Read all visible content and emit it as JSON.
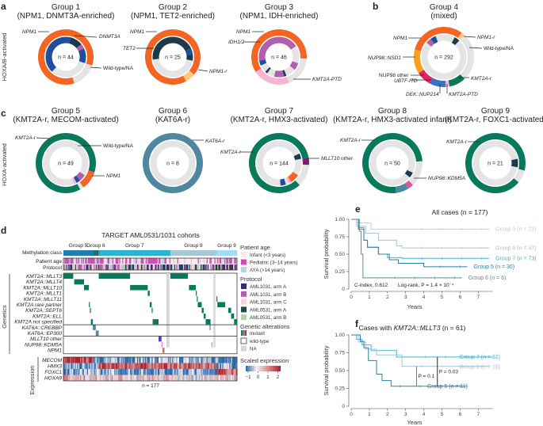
{
  "panel_labels": {
    "a": "a",
    "b": "b",
    "c": "c",
    "d": "d",
    "e": "e",
    "f": "f"
  },
  "side_labels": {
    "hoxab": "HOXA/B-activated",
    "hoxa": "HOXA-activated"
  },
  "colors": {
    "NPM1": "#f26522",
    "NPM1-r": "#fbc97a",
    "DNMT3A": "#1f4e9c",
    "TET2": "#1b3a4b",
    "IDH1/2": "#b05fac",
    "KMT2A-PTD": "#f4b6d2",
    "Wild-type/NA": "#e4e4e4",
    "KMT2A-r": "#08795a",
    "KAT6A-r": "#4f86a0",
    "NUP98::NSD1": "#f6a21c",
    "NUP98 other": "#e0245e",
    "UBTF-ITD": "#e0245e",
    "DEK::NUP214": "#3b73c4",
    "MLLT10 other": "#7a1f7a",
    "NUP98::KDM5A": "#e8509a"
  },
  "donuts": [
    {
      "id": "g1",
      "title": "Group 1",
      "subtitle": "(NPM1, DNMT3A-enriched)",
      "n": "n = 44",
      "outer": [
        [
          "NPM1",
          0.3
        ],
        [
          "Wild-type/NA",
          0.15
        ],
        [
          "NPM1",
          0.55
        ]
      ],
      "inner": [
        [
          "DNMT3A",
          0.04
        ],
        [
          "TET2",
          0.1
        ],
        [
          "IDH1/2",
          0.04
        ],
        [
          "DNMT3A",
          0.12
        ],
        [
          "Wild-type/NA",
          0.32
        ],
        [
          "DNMT3A",
          0.38
        ]
      ],
      "labels": [
        "NPM1",
        "DNMT3A",
        "Wild-type/NA"
      ]
    },
    {
      "id": "g2",
      "title": "Group 2",
      "subtitle": "(NPM1, TET2-enriched)",
      "n": "n = 25",
      "outer": [
        [
          "NPM1",
          0.36
        ],
        [
          "NPM1-r",
          0.06
        ],
        [
          "NPM1",
          0.58
        ]
      ],
      "inner": [
        [
          "TET2",
          0.18
        ],
        [
          "DNMT3A",
          0.05
        ],
        [
          "TET2",
          0.05
        ],
        [
          "Wild-type/NA",
          0.45
        ],
        [
          "TET2",
          0.27
        ]
      ],
      "labels": [
        "NPM1",
        "TET2",
        "NPM1-r"
      ]
    },
    {
      "id": "g3",
      "title": "Group 3",
      "subtitle": "(NPM1, IDH-enriched)",
      "n": "n = 46",
      "outer": [
        [
          "NPM1",
          0.26
        ],
        [
          "Wild-type/NA",
          0.18
        ],
        [
          "KMT2A-PTD",
          0.22
        ],
        [
          "NPM1",
          0.34
        ]
      ],
      "inner": [
        [
          "IDH1/2",
          0.16
        ],
        [
          "Wild-type/NA",
          0.14
        ],
        [
          "IDH1/2",
          0.06
        ],
        [
          "Wild-type/NA",
          0.08
        ],
        [
          "TET2",
          0.02
        ],
        [
          "IDH1/2",
          0.08
        ],
        [
          "Wild-type/NA",
          0.06
        ],
        [
          "TET2",
          0.02
        ],
        [
          "Wild-type/NA",
          0.06
        ],
        [
          "DNMT3A",
          0.04
        ],
        [
          "IDH1/2",
          0.28
        ]
      ],
      "labels": [
        "NPM1",
        "IDH1/2",
        "KMT2A-PTD"
      ]
    },
    {
      "id": "g4",
      "title": "Group 4",
      "subtitle": "(mixed)",
      "n": "n = 292",
      "outer": [
        [
          "NPM1",
          0.1
        ],
        [
          "NPM1-r",
          0.02
        ],
        [
          "Wild-type/NA",
          0.26
        ],
        [
          "KMT2A-r",
          0.09
        ],
        [
          "KMT2A-PTD",
          0.02
        ],
        [
          "DEK::NUP214",
          0.09
        ],
        [
          "UBTF-ITD",
          0.08
        ],
        [
          "NUP98::NSD1",
          0.13
        ],
        [
          "NPM1",
          0.21
        ]
      ],
      "inner": [
        [
          "Wild-type/NA",
          0.08
        ],
        [
          "TET2",
          0.04
        ],
        [
          "Wild-type/NA",
          0.74
        ],
        [
          "IDH1/2",
          0.04
        ],
        [
          "DNMT3A",
          0.04
        ],
        [
          "Wild-type/NA",
          0.06
        ]
      ],
      "labels": [
        "NPM1",
        "NPM1-r",
        "Wild-type/NA",
        "NUP98::NSD1",
        "NUP98 other",
        "UBTF-ITD",
        "KMT2A-r",
        "DEK::NUP214",
        "KMT2A-PTD"
      ]
    },
    {
      "id": "g5",
      "title": "Group 5",
      "subtitle": "(KMT2A-r, MECOM-activated)",
      "n": "n = 49",
      "outer": [
        [
          "KMT2A-r",
          0.3
        ],
        [
          "NPM1",
          0.1
        ],
        [
          "Wild-type/NA",
          0.02
        ],
        [
          "KMT2A-r",
          0.58
        ]
      ],
      "inner": [
        [
          "Wild-type/NA",
          0.34
        ],
        [
          "IDH1/2",
          0.05
        ],
        [
          "DNMT3A",
          0.03
        ],
        [
          "KMT2A-PTD",
          0.02
        ],
        [
          "Wild-type/NA",
          0.56
        ]
      ],
      "labels": [
        "KMT2A-r",
        "Wild-type/NA",
        "NPM1"
      ]
    },
    {
      "id": "g6",
      "title": "Group 6",
      "subtitle": "(KAT6A-r)",
      "n": "n = 8",
      "outer": [
        [
          "KAT6A-r",
          1.0
        ]
      ],
      "inner": [
        [
          "Wild-type/NA",
          1.0
        ]
      ],
      "labels": [
        "KAT6A-r"
      ]
    },
    {
      "id": "g7",
      "title": "Group 7",
      "subtitle": "(KMT2A-r, HMX3-activated)",
      "n": "n = 144",
      "outer": [
        [
          "KMT2A-r",
          0.22
        ],
        [
          "MLLT10 other",
          0.04
        ],
        [
          "Wild-type/NA",
          0.12
        ],
        [
          "KMT2A-r",
          0.62
        ]
      ],
      "inner": [
        [
          "Wild-type/NA",
          0.18
        ],
        [
          "TET2",
          0.04
        ],
        [
          "Wild-type/NA",
          0.12
        ],
        [
          "NPM1",
          0.07
        ],
        [
          "KMT2A-PTD",
          0.02
        ],
        [
          "Wild-type/NA",
          0.02
        ],
        [
          "DNMT3A",
          0.04
        ],
        [
          "Wild-type/NA",
          0.51
        ]
      ],
      "labels": [
        "KMT2A-r",
        "MLLT10 other"
      ]
    },
    {
      "id": "g8",
      "title": "Group 8",
      "subtitle": "(KMT2A-r, HMX3-activated infant)",
      "n": "n = 50",
      "outer": [
        [
          "KMT2A-r",
          0.24
        ],
        [
          "Wild-type/NA",
          0.14
        ],
        [
          "NUP98::KDM5A",
          0.03
        ],
        [
          "KAT6A-r",
          0.07
        ],
        [
          "KMT2A-r",
          0.52
        ]
      ],
      "inner": [
        [
          "Wild-type/NA",
          0.32
        ],
        [
          "TET2",
          0.04
        ],
        [
          "Wild-type/NA",
          0.64
        ]
      ],
      "labels": [
        "KMT2A-r",
        "NUP98::KDM5A"
      ]
    },
    {
      "id": "g9",
      "title": "Group 9",
      "subtitle": "(KMT2A-r, FOXC1-activated)",
      "n": "n = 21",
      "outer": [
        [
          "KMT2A-r",
          0.29
        ],
        [
          "Wild-type/NA",
          0.07
        ],
        [
          "KMT2A-r",
          0.64
        ]
      ],
      "inner": [
        [
          "Wild-type/NA",
          0.22
        ],
        [
          "TET2",
          0.06
        ],
        [
          "Wild-type/NA",
          0.72
        ]
      ],
      "labels": [
        "KMT2A-r"
      ]
    }
  ],
  "heatmap": {
    "title": "TARGET AML0531/1031 cohorts",
    "groups": [
      {
        "name": "Group 5",
        "count": 30,
        "color": "#1e7fae"
      },
      {
        "name": "Group 6",
        "count": 6,
        "color": "#2c6b6e"
      },
      {
        "name": "Group 7",
        "count": 73,
        "color": "#2eb3cf"
      },
      {
        "name": "Group 8",
        "count": 47,
        "color": "#a8c6d6"
      },
      {
        "name": "Group 9",
        "count": 21,
        "color": "#a3dcf6"
      }
    ],
    "methylation_label": "Methylation class",
    "annotation_rows": [
      "Patient age",
      "Protocol"
    ],
    "genetics_label": "Genetics",
    "genetics_rows": [
      {
        "name": "KMT2A::MLLT3",
        "color": "#08795a",
        "cols": [
          [
            0,
            10
          ],
          [
            36,
            68
          ],
          [
            109,
            127
          ]
        ]
      },
      {
        "name": "KMT2A::MLLT4",
        "color": "#08795a",
        "cols": [
          [
            11,
            21
          ]
        ]
      },
      {
        "name": "KMT2A::MLLT10",
        "color": "#08795a",
        "cols": [
          [
            21,
            26
          ],
          [
            68,
            86
          ],
          [
            128,
            135
          ]
        ]
      },
      {
        "name": "KMT2A::MLLT1",
        "color": "#08795a",
        "cols": [
          [
            86,
            88
          ],
          [
            135,
            136
          ]
        ]
      },
      {
        "name": "KMT2A::MLLT11",
        "color": "#08795a",
        "cols": [
          [
            136,
            137
          ],
          [
            156,
            157
          ]
        ]
      },
      {
        "name": "KMT2A rare partner",
        "color": "#08795a",
        "cols": [
          [
            26,
            27
          ],
          [
            88,
            90
          ],
          [
            137,
            141
          ],
          [
            157,
            165
          ]
        ]
      },
      {
        "name": "KMT2A::SEPT6",
        "color": "#08795a",
        "cols": [
          [
            27,
            28
          ],
          [
            90,
            91
          ],
          [
            141,
            143
          ],
          [
            168,
            171
          ]
        ]
      },
      {
        "name": "KMT2A::ELL",
        "color": "#08795a",
        "cols": [
          [
            143,
            145
          ],
          [
            171,
            174
          ]
        ]
      },
      {
        "name": "KMT2A not specified",
        "color": "#08795a",
        "cols": [
          [
            28,
            30
          ],
          [
            91,
            97
          ],
          [
            145,
            150
          ],
          [
            174,
            177
          ]
        ]
      },
      {
        "name": "KAT6A::CREBBP",
        "color": "#4f86a0",
        "cols": [
          [
            30,
            33
          ],
          [
            149,
            150
          ]
        ]
      },
      {
        "name": "KAT6A::EP300",
        "color": "#4f86a0",
        "cols": [
          [
            33,
            36
          ]
        ]
      },
      {
        "name": "MLLT10 other",
        "color": "#4a3fd6",
        "cols": [
          [
            97,
            100
          ]
        ]
      },
      {
        "name": "NUP98::KDM5A",
        "color": "#f07cc0",
        "cols": [
          [
            100,
            101
          ],
          [
            151,
            152
          ]
        ]
      },
      {
        "name": "NPM1",
        "color": "#f26522",
        "cols": [
          [
            101,
            103
          ]
        ]
      }
    ],
    "na_cols": [
      [
        105,
        108
      ],
      [
        153,
        155
      ]
    ],
    "expression_label": "Expression",
    "expression_rows": [
      {
        "name": "MECOM",
        "group_means": [
          1.8,
          -0.3,
          -0.6,
          -0.5,
          -0.7
        ]
      },
      {
        "name": "HMX3",
        "group_means": [
          -0.8,
          -0.5,
          1.6,
          1.4,
          -0.5
        ]
      },
      {
        "name": "FOXC1",
        "group_means": [
          -0.6,
          -0.4,
          -0.6,
          -0.6,
          1.6
        ]
      },
      {
        "name": "HOXA9",
        "group_means": [
          0.6,
          0.4,
          0.4,
          0.2,
          0.3
        ]
      }
    ],
    "n_label": "n = 177"
  },
  "legend": {
    "age_title": "Patient age",
    "age": [
      {
        "label": "Infant (<3 years)",
        "color": "#fde8ea"
      },
      {
        "label": "Pediatric (3–14 years)",
        "color": "#cc4fb0"
      },
      {
        "label": "AYA (>14 years)",
        "color": "#b7d4dc"
      }
    ],
    "protocol_title": "Protocol",
    "protocol": [
      {
        "label": "AML1031, arm A",
        "color": "#3a2a6e"
      },
      {
        "label": "AML1031, arm B",
        "color": "#a862b0"
      },
      {
        "label": "AML1031, arm C",
        "color": "#f8cfe0"
      },
      {
        "label": "AML0531, arm A",
        "color": "#1c4a45"
      },
      {
        "label": "AML0531, arm B",
        "color": "#b6cfae"
      }
    ],
    "alt_title": "Genetic alterations",
    "alt": [
      {
        "label": "mutant"
      },
      {
        "label": "wild-type"
      },
      {
        "label": "NA"
      }
    ],
    "expr_title": "Scaled expression",
    "expr_ticks": [
      "−1",
      "0",
      "1",
      "2"
    ]
  },
  "chart_data": [
    {
      "type": "line",
      "title": "All cases (n = 177)",
      "xlabel": "Years",
      "ylabel": "Survival probability",
      "xlim": [
        0,
        7.8
      ],
      "ylim": [
        0,
        1
      ],
      "xticks": [
        "0",
        "1",
        "2",
        "3",
        "4",
        "5",
        "6",
        "7"
      ],
      "yticks": [
        "0",
        "0.25",
        "0.50",
        "0.75",
        "1.00"
      ],
      "annotation_cindex": "C-index, 0.612",
      "annotation_logrank": "Log-rank, P = 1.4 × 10⁻⁴",
      "series": [
        {
          "name": "Group 9 (n = 21)",
          "color": "#a3d8f0",
          "x": [
            0,
            0.3,
            1.1,
            7.6
          ],
          "y": [
            1,
            0.95,
            0.86,
            0.86
          ]
        },
        {
          "name": "Group 8 (n = 47)",
          "color": "#a8c3d2",
          "x": [
            0,
            0.3,
            0.8,
            1.5,
            2.5,
            2.8,
            7.6
          ],
          "y": [
            1,
            0.9,
            0.8,
            0.7,
            0.62,
            0.59,
            0.59
          ]
        },
        {
          "name": "Group 7 (n = 73)",
          "color": "#3cb6d0",
          "x": [
            0,
            0.4,
            0.7,
            0.9,
            1.5,
            2,
            2.8,
            7.6
          ],
          "y": [
            1,
            0.88,
            0.7,
            0.6,
            0.5,
            0.45,
            0.44,
            0.44
          ]
        },
        {
          "name": "Group 5 (n = 30)",
          "color": "#2a7fa8",
          "x": [
            0,
            0.4,
            0.7,
            0.9,
            1.5,
            2.1,
            2.6,
            4,
            6.4
          ],
          "y": [
            1,
            0.86,
            0.7,
            0.6,
            0.5,
            0.42,
            0.37,
            0.32,
            0.32
          ]
        },
        {
          "name": "Group 6 (n = 6)",
          "color": "#5e8c8a",
          "x": [
            0,
            0.45,
            0.55,
            0.65,
            6.1
          ],
          "y": [
            1,
            0.83,
            0.5,
            0.16,
            0.16
          ]
        }
      ]
    },
    {
      "type": "line",
      "title_prefix": "Cases with ",
      "title_gene": "KMT2A::MLLT3",
      "title_suffix": " (n = 61)",
      "xlabel": "Years",
      "ylabel": "Survival probability",
      "xlim": [
        0,
        7.8
      ],
      "ylim": [
        0,
        1
      ],
      "xticks": [
        "0",
        "1",
        "2",
        "3",
        "4",
        "5",
        "6",
        "7"
      ],
      "yticks": [
        "0",
        "0.25",
        "0.50",
        "0.75",
        "1.00"
      ],
      "series": [
        {
          "name": "Group 7 (n = 32)",
          "color": "#3cb6d0",
          "x": [
            0,
            0.3,
            0.6,
            1.1,
            2.5,
            7.8
          ],
          "y": [
            1,
            0.94,
            0.86,
            0.78,
            0.69,
            0.69
          ]
        },
        {
          "name": "Group 8 (n = 18)",
          "color": "#a8c3d2",
          "x": [
            0,
            0.4,
            0.8,
            1.4,
            2.8,
            7.6
          ],
          "y": [
            1,
            0.9,
            0.8,
            0.72,
            0.56,
            0.56
          ]
        },
        {
          "name": "Group 5 (n = 11)",
          "color": "#2a7fa8",
          "x": [
            0,
            0.5,
            0.7,
            0.95,
            1.4,
            1.7,
            2.2,
            6.4
          ],
          "y": [
            1,
            0.91,
            0.82,
            0.64,
            0.45,
            0.36,
            0.28,
            0.28
          ]
        }
      ],
      "comparisons": [
        {
          "label": "P = 0.1",
          "x": 3.6,
          "y": [
            0.28,
            0.56
          ]
        },
        {
          "label": "P = 0.03",
          "x": 4.75,
          "y": [
            0.28,
            0.69
          ]
        }
      ]
    }
  ]
}
